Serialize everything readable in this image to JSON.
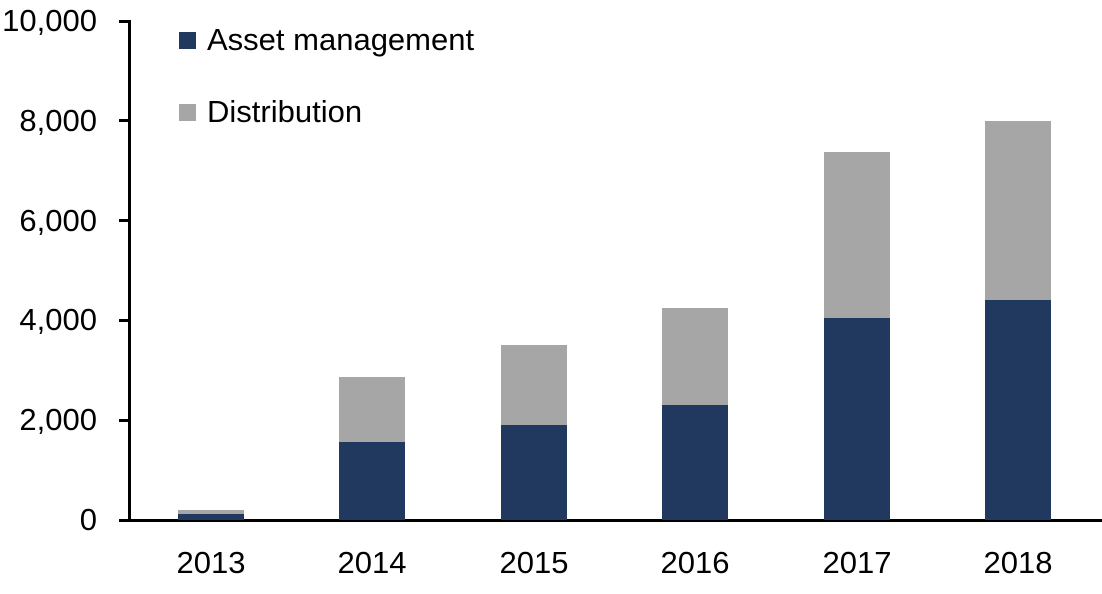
{
  "chart_data": {
    "type": "bar",
    "stacked": true,
    "categories": [
      "2013",
      "2014",
      "2015",
      "2016",
      "2017",
      "2018"
    ],
    "series": [
      {
        "name": "Asset management",
        "color": "#22395F",
        "values": [
          120,
          1560,
          1900,
          2310,
          4040,
          4410
        ]
      },
      {
        "name": "Distribution",
        "color": "#A6A6A6",
        "values": [
          80,
          1310,
          1600,
          1940,
          3340,
          3590
        ]
      }
    ],
    "totals": [
      200,
      2870,
      3500,
      4250,
      7380,
      8000
    ],
    "title": "",
    "xlabel": "",
    "ylabel": "",
    "ylim": [
      0,
      10000
    ],
    "ytick_step": 2000,
    "yticks": [
      {
        "value": 0,
        "label": "0"
      },
      {
        "value": 2000,
        "label": "2,000"
      },
      {
        "value": 4000,
        "label": "4,000"
      },
      {
        "value": 6000,
        "label": "6,000"
      },
      {
        "value": 8000,
        "label": "8,000"
      },
      {
        "value": 10000,
        "label": "10,000"
      }
    ],
    "grid": false,
    "legend_position": "top-left",
    "axis_color": "#000000",
    "text_color": "#000000",
    "background_color": "#FFFFFF"
  }
}
